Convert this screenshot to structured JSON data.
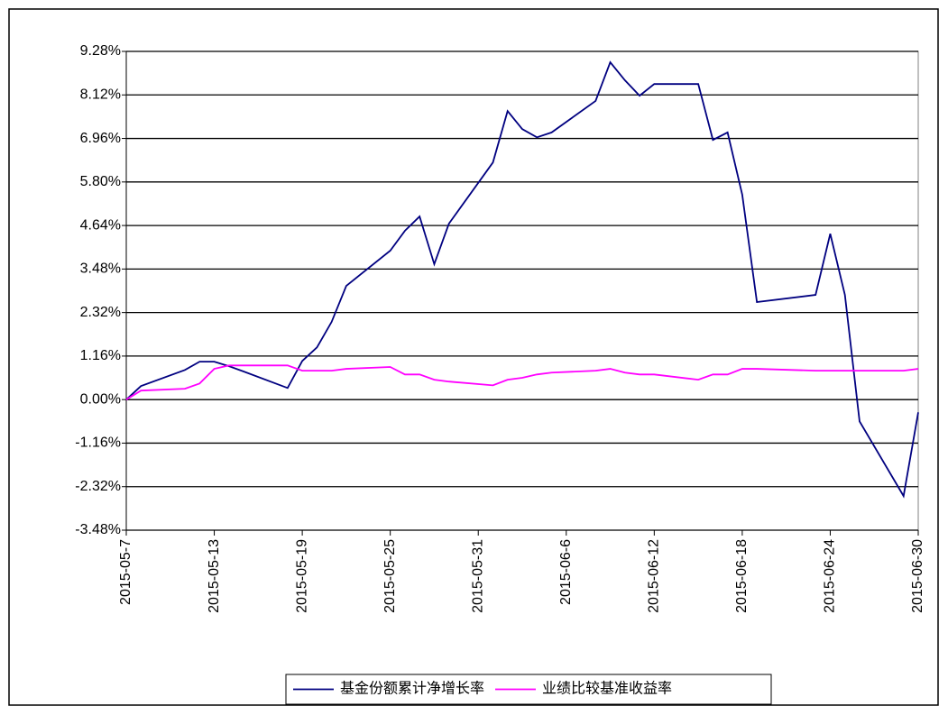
{
  "chart_data": {
    "type": "line",
    "x": [
      "2015-05-07",
      "2015-05-08",
      "2015-05-11",
      "2015-05-12",
      "2015-05-13",
      "2015-05-14",
      "2015-05-15",
      "2015-05-18",
      "2015-05-19",
      "2015-05-20",
      "2015-05-21",
      "2015-05-22",
      "2015-05-25",
      "2015-05-26",
      "2015-05-27",
      "2015-05-28",
      "2015-05-29",
      "2015-06-01",
      "2015-06-02",
      "2015-06-03",
      "2015-06-04",
      "2015-06-05",
      "2015-06-08",
      "2015-06-09",
      "2015-06-10",
      "2015-06-11",
      "2015-06-12",
      "2015-06-15",
      "2015-06-16",
      "2015-06-17",
      "2015-06-18",
      "2015-06-19",
      "2015-06-23",
      "2015-06-24",
      "2015-06-25",
      "2015-06-26",
      "2015-06-29",
      "2015-06-30"
    ],
    "series": [
      {
        "name": "基金份额累计净增长率",
        "color": "#000080",
        "values": [
          0,
          0.36,
          0.79,
          1.01,
          1.01,
          0.89,
          0.75,
          0.31,
          1.03,
          1.39,
          2.07,
          3.03,
          3.97,
          4.5,
          4.88,
          3.61,
          4.69,
          6.32,
          7.69,
          7.21,
          6.99,
          7.12,
          7.96,
          8.99,
          8.51,
          8.1,
          8.41,
          8.41,
          6.92,
          7.12,
          5.46,
          2.6,
          2.79,
          4.42,
          2.79,
          -0.58,
          -2.57,
          -0.34
        ]
      },
      {
        "name": "业绩比较基准收益率",
        "color": "#ff00ff",
        "values": [
          0,
          0.24,
          0.29,
          0.43,
          0.82,
          0.91,
          0.91,
          0.91,
          0.77,
          0.77,
          0.77,
          0.82,
          0.87,
          0.67,
          0.67,
          0.53,
          0.48,
          0.38,
          0.53,
          0.58,
          0.67,
          0.72,
          0.77,
          0.82,
          0.72,
          0.67,
          0.67,
          0.53,
          0.67,
          0.67,
          0.82,
          0.82,
          0.77,
          0.77,
          0.77,
          0.77,
          0.77,
          0.82
        ]
      }
    ],
    "xlim": [
      "2015-05-07",
      "2015-06-30"
    ],
    "xticks": [
      {
        "value": "2015-05-07",
        "label": "2015-05-7"
      },
      "2015-05-13",
      "2015-05-19",
      "2015-05-25",
      "2015-05-31",
      {
        "value": "2015-06-06",
        "label": "2015-06-6"
      },
      "2015-06-12",
      "2015-06-18",
      "2015-06-24",
      "2015-06-30"
    ],
    "ylim": [
      -3.48,
      9.28
    ],
    "yticks": [
      {
        "value": -3.48,
        "label": "-3.48%"
      },
      {
        "value": -2.32,
        "label": "-2.32%"
      },
      {
        "value": -1.16,
        "label": "-1.16%"
      },
      {
        "value": 0,
        "label": "0.00%"
      },
      {
        "value": 1.16,
        "label": "1.16%"
      },
      {
        "value": 2.32,
        "label": "2.32%"
      },
      {
        "value": 3.48,
        "label": "3.48%"
      },
      {
        "value": 4.64,
        "label": "4.64%"
      },
      {
        "value": 5.8,
        "label": "5.80%"
      },
      {
        "value": 6.96,
        "label": "6.96%"
      },
      {
        "value": 8.12,
        "label": "8.12%"
      },
      {
        "value": 9.28,
        "label": "9.28%"
      }
    ],
    "grid": true,
    "legend": "bottom"
  }
}
